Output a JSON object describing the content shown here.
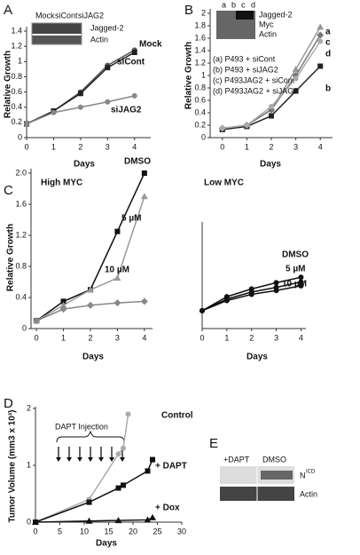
{
  "chart_data": [
    {
      "type": "line",
      "panel_label": "A",
      "xlabel": "Days",
      "ylabel": "Relative Growth",
      "x": [
        0,
        1,
        2,
        3,
        4
      ],
      "xlim": [
        0,
        4.6
      ],
      "xticks": [
        0,
        1,
        2,
        3,
        4
      ],
      "ylim": [
        0,
        1.4
      ],
      "yticks": [
        0,
        0.2,
        0.4,
        0.6,
        0.8,
        1,
        1.2,
        1.4
      ],
      "inset": {
        "lanes": [
          "Mock",
          "siCont",
          "siJAG2"
        ],
        "bands": [
          "Jagged-2",
          "Actin"
        ]
      },
      "series": [
        {
          "name": "Mock",
          "color": "#555555",
          "marker": "circle",
          "values": [
            0.18,
            0.35,
            0.6,
            0.95,
            1.15
          ]
        },
        {
          "name": "siCont",
          "color": "#222222",
          "marker": "square",
          "values": [
            0.18,
            0.35,
            0.58,
            0.92,
            1.12
          ]
        },
        {
          "name": "siJAG2",
          "color": "#888888",
          "marker": "circle",
          "values": [
            0.18,
            0.33,
            0.4,
            0.47,
            0.55
          ]
        }
      ]
    },
    {
      "type": "line",
      "panel_label": "B",
      "xlabel": "Days",
      "ylabel": "Relative Growth",
      "x": [
        0,
        1,
        2,
        3,
        4
      ],
      "xlim": [
        -0.5,
        4.5
      ],
      "xticks": [
        0,
        1,
        2,
        3,
        4
      ],
      "ylim": [
        0,
        2
      ],
      "yticks": [
        0,
        0.2,
        0.4,
        0.6,
        0.8,
        1,
        1.2,
        1.4,
        1.6,
        1.8,
        2
      ],
      "inset": {
        "lanes": [
          "a",
          "b",
          "c",
          "d"
        ],
        "bands": [
          "Jagged-2",
          "Myc",
          "Actin"
        ]
      },
      "series": [
        {
          "name": "(a) P493 + siCont",
          "end_label": "a",
          "color": "#999999",
          "marker": "triangle",
          "values": [
            0.15,
            0.2,
            0.45,
            1.1,
            1.78
          ]
        },
        {
          "name": "(b) P493 + siJAG2",
          "end_label": "b",
          "color": "#222222",
          "marker": "square",
          "values": [
            0.13,
            0.18,
            0.35,
            0.75,
            1.15
          ]
        },
        {
          "name": "(c) P493JAG2 + siCont",
          "end_label": "c",
          "color": "#777777",
          "marker": "diamond",
          "values": [
            0.15,
            0.2,
            0.45,
            1.0,
            1.65
          ]
        },
        {
          "name": "(d) P493JAG2 + siJAG2",
          "end_label": "d",
          "color": "#aaaaaa",
          "marker": "circle",
          "values": [
            0.15,
            0.2,
            0.5,
            0.95,
            1.55
          ]
        }
      ]
    },
    {
      "type": "line",
      "panel_label": "C",
      "title": "High MYC",
      "xlabel": "Days",
      "ylabel": "Relative Growth",
      "x": [
        0,
        1,
        2,
        3,
        4
      ],
      "xlim": [
        -0.2,
        4.3
      ],
      "xticks": [
        0,
        1,
        2,
        3,
        4
      ],
      "ylim": [
        0,
        2
      ],
      "yticks": [
        0,
        0.4,
        0.8,
        1.2,
        1.6,
        {
          "value": 2,
          "label": "2.0"
        }
      ],
      "series": [
        {
          "name": "DMSO",
          "color": "#111111",
          "marker": "square",
          "values": [
            0.1,
            0.35,
            0.5,
            1.25,
            2.0
          ]
        },
        {
          "name": "5 µM",
          "color": "#999999",
          "marker": "triangle",
          "values": [
            0.1,
            0.3,
            0.5,
            0.65,
            1.7
          ]
        },
        {
          "name": "10 µM",
          "color": "#888888",
          "marker": "diamond",
          "values": [
            0.1,
            0.25,
            0.3,
            0.33,
            0.35
          ]
        }
      ]
    },
    {
      "type": "line",
      "title": "Low MYC",
      "xlabel": "Days",
      "x": [
        0,
        1,
        2,
        3,
        4
      ],
      "xlim": [
        0,
        4.2
      ],
      "xticks": [
        0,
        1,
        2,
        3,
        4
      ],
      "ylim": [
        0,
        2
      ],
      "series": [
        {
          "name": "DMSO",
          "color": "#111111",
          "marker": "circle",
          "values": [
            0.23,
            0.41,
            0.51,
            0.59,
            0.66
          ]
        },
        {
          "name": "5 µM",
          "color": "#111111",
          "marker": "circle",
          "values": [
            0.23,
            0.38,
            0.47,
            0.53,
            0.6
          ]
        },
        {
          "name": "10 µM",
          "color": "#111111",
          "marker": "circle",
          "values": [
            0.23,
            0.36,
            0.44,
            0.49,
            0.55
          ]
        }
      ]
    },
    {
      "type": "line",
      "panel_label": "D",
      "xlabel": "Days",
      "ylabel": "Tumor Volume (mm3 x 10³)",
      "annotation": "DAPT Injection",
      "xlim": [
        0,
        30
      ],
      "xticks": [
        0,
        5,
        10,
        15,
        20,
        25,
        30
      ],
      "ylim": [
        0,
        2
      ],
      "yticks": [
        0,
        1,
        2
      ],
      "series": [
        {
          "name": "Control",
          "color": "#aaaaaa",
          "marker": "circle",
          "x": [
            0,
            11,
            17,
            18,
            19
          ],
          "values": [
            0,
            0.4,
            1.2,
            1.3,
            1.9
          ]
        },
        {
          "name": "+ DAPT",
          "color": "#111111",
          "marker": "square",
          "x": [
            0,
            11,
            17,
            18,
            23,
            24
          ],
          "values": [
            0,
            0.35,
            0.6,
            0.65,
            0.9,
            1.1
          ]
        },
        {
          "name": "+ Dox",
          "color": "#111111",
          "marker": "triangle",
          "x": [
            0,
            11,
            17,
            23,
            24
          ],
          "values": [
            0,
            0.02,
            0.03,
            0.04,
            0.08
          ]
        }
      ]
    }
  ],
  "blot_e": {
    "panel_label": "E",
    "lanes": [
      "+DAPT",
      "DMSO"
    ],
    "band_1": "N",
    "band_1_sup": "ICD",
    "band_2": "Actin"
  }
}
